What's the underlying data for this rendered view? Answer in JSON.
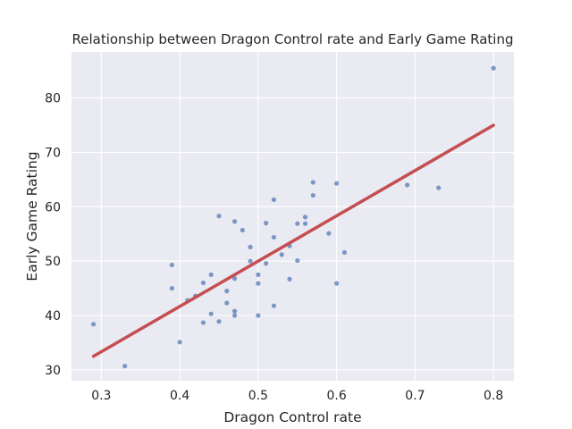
{
  "chart_data": {
    "type": "scatter",
    "title": "Relationship between Dragon Control rate and Early Game Rating",
    "xlabel": "Dragon Control rate",
    "ylabel": "Early Game Rating",
    "xlim": [
      0.262,
      0.826
    ],
    "ylim": [
      28.0,
      88.5
    ],
    "xticks": [
      0.3,
      0.4,
      0.5,
      0.6,
      0.7,
      0.8
    ],
    "xtick_labels": [
      "0.3",
      "0.4",
      "0.5",
      "0.6",
      "0.7",
      "0.8"
    ],
    "yticks": [
      30,
      40,
      50,
      60,
      70,
      80
    ],
    "ytick_labels": [
      "30",
      "40",
      "50",
      "60",
      "70",
      "80"
    ],
    "grid": true,
    "background_color": "#eaeaf2",
    "point_color": "#4c72b0",
    "line_color": "#c44e52",
    "points": [
      [
        0.29,
        38.4
      ],
      [
        0.33,
        30.7
      ],
      [
        0.39,
        49.3
      ],
      [
        0.39,
        45.0
      ],
      [
        0.4,
        35.1
      ],
      [
        0.41,
        42.8
      ],
      [
        0.42,
        43.6
      ],
      [
        0.43,
        46.0
      ],
      [
        0.43,
        38.7
      ],
      [
        0.44,
        47.5
      ],
      [
        0.44,
        40.3
      ],
      [
        0.45,
        58.3
      ],
      [
        0.45,
        38.9
      ],
      [
        0.46,
        44.5
      ],
      [
        0.46,
        42.3
      ],
      [
        0.47,
        57.3
      ],
      [
        0.47,
        46.8
      ],
      [
        0.47,
        40.8
      ],
      [
        0.47,
        40.0
      ],
      [
        0.48,
        55.7
      ],
      [
        0.49,
        52.6
      ],
      [
        0.49,
        50.0
      ],
      [
        0.5,
        47.5
      ],
      [
        0.5,
        45.9
      ],
      [
        0.5,
        40.0
      ],
      [
        0.51,
        57.0
      ],
      [
        0.51,
        49.6
      ],
      [
        0.52,
        61.3
      ],
      [
        0.52,
        54.4
      ],
      [
        0.52,
        41.8
      ],
      [
        0.53,
        51.2
      ],
      [
        0.54,
        52.8
      ],
      [
        0.54,
        46.7
      ],
      [
        0.55,
        56.9
      ],
      [
        0.55,
        50.1
      ],
      [
        0.56,
        58.1
      ],
      [
        0.56,
        56.9
      ],
      [
        0.57,
        64.5
      ],
      [
        0.57,
        62.1
      ],
      [
        0.59,
        55.1
      ],
      [
        0.6,
        64.3
      ],
      [
        0.6,
        45.9
      ],
      [
        0.61,
        51.6
      ],
      [
        0.69,
        64.0
      ],
      [
        0.73,
        63.5
      ],
      [
        0.8,
        85.5
      ]
    ],
    "fit_line": {
      "x": [
        0.29,
        0.8
      ],
      "y": [
        32.5,
        75.0
      ]
    }
  }
}
